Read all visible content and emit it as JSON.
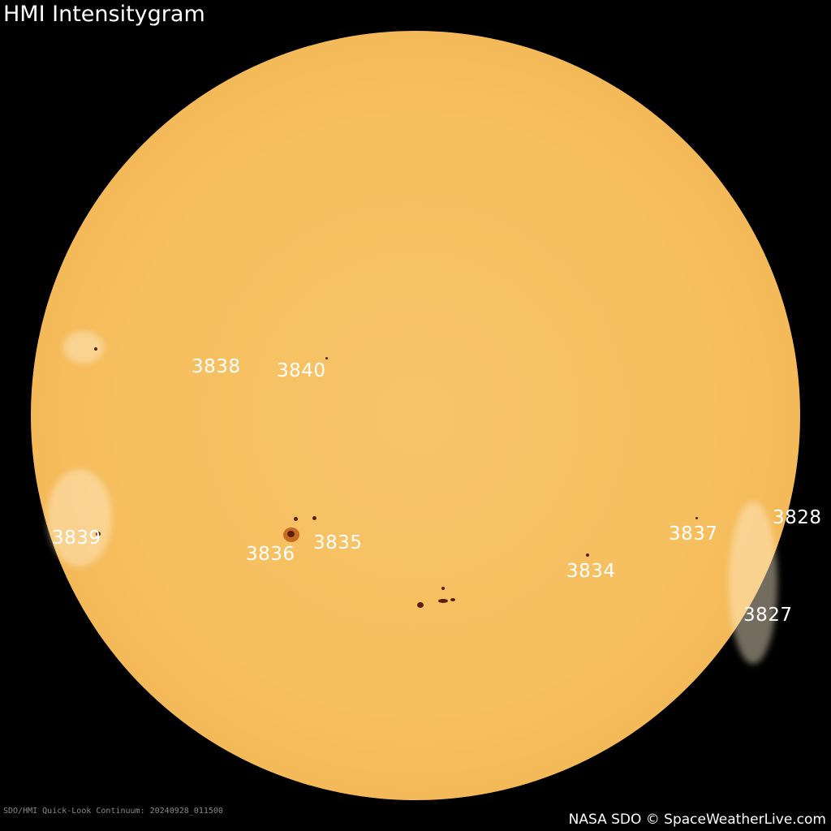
{
  "title": "HMI Intensitygram",
  "caption": "SDO/HMI Quick-Look Continuum: 20240928_011500",
  "credit": "NASA SDO © SpaceWeatherLive.com",
  "colors": {
    "background": "#000000",
    "sun_disk": "#f6bf5f",
    "sunspot": "#5a1f08",
    "label": "#ffffff"
  },
  "regions": [
    "3838",
    "3840",
    "3839",
    "3836",
    "3835",
    "3834",
    "3837",
    "3828",
    "3827"
  ]
}
